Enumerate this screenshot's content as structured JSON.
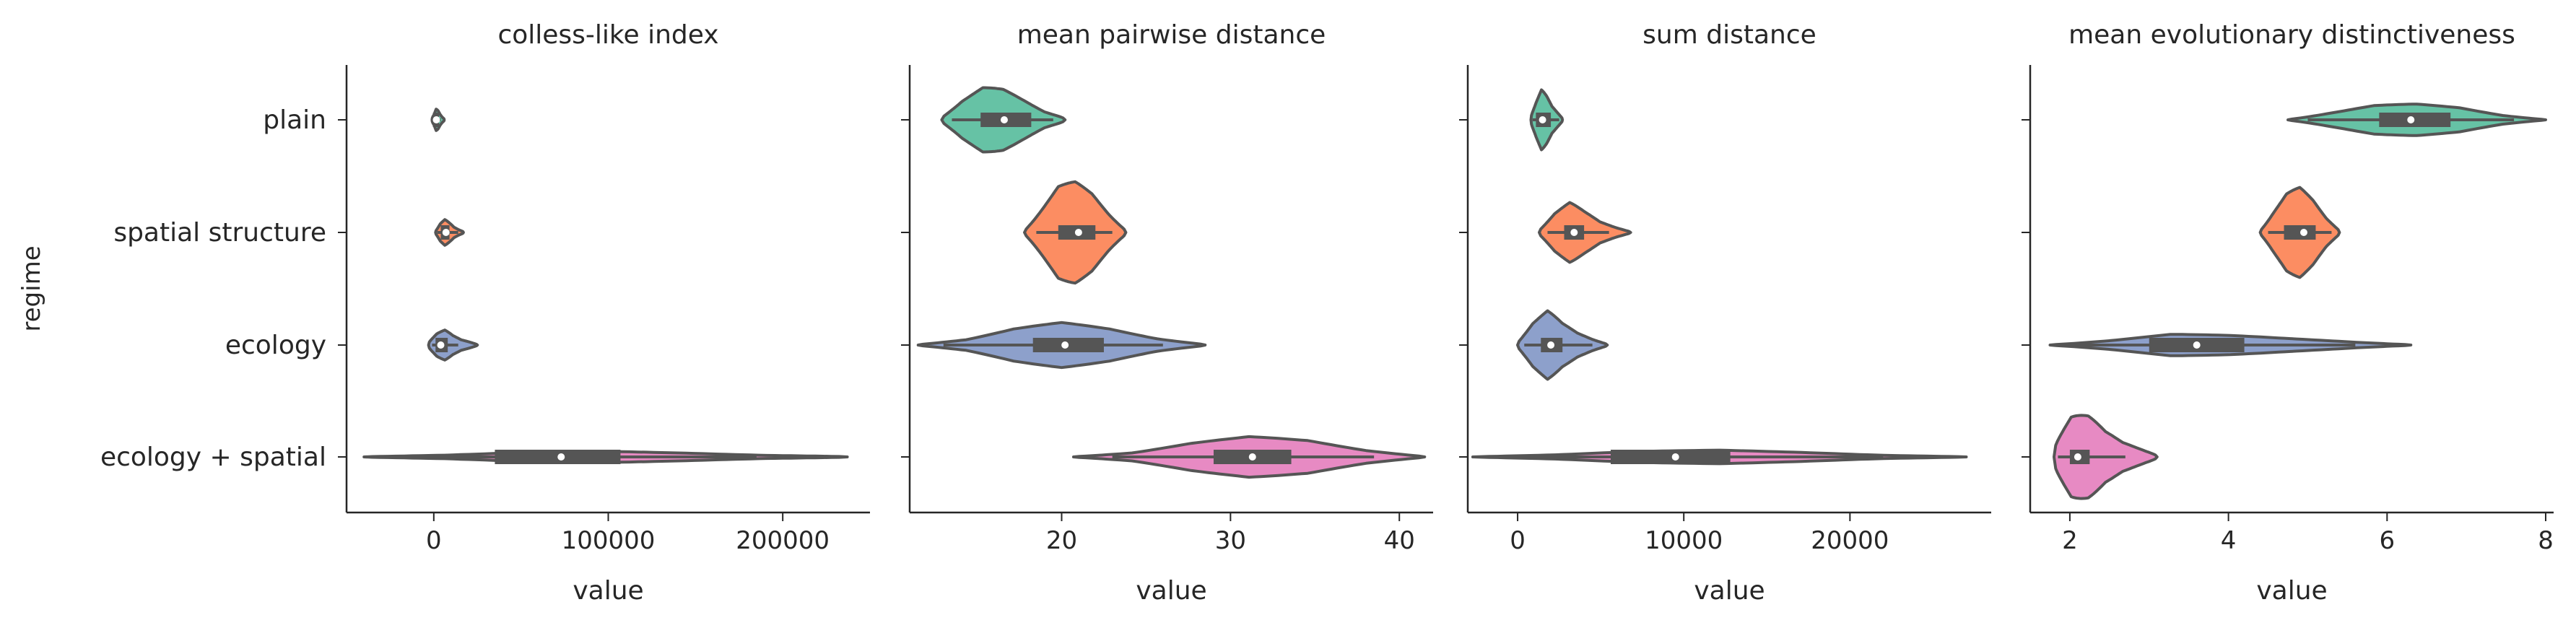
{
  "colors": {
    "plain": "#66c2a5",
    "spatial structure": "#fc8d62",
    "ecology": "#8da0cb",
    "ecology + spatial": "#e78ac3",
    "outline": "#555555",
    "axis": "#262626"
  },
  "chart_data": {
    "type": "violin",
    "ylabel": "regime",
    "categories": [
      "plain",
      "spatial structure",
      "ecology",
      "ecology + spatial"
    ],
    "facets": [
      {
        "title": "colless-like index",
        "xlabel": "value",
        "xlim": [
          -50000,
          250000
        ],
        "xticks": [
          0,
          100000,
          200000
        ],
        "xtick_labels": [
          "0",
          "100000",
          "200000"
        ],
        "violins": [
          {
            "category": "plain",
            "min": -1000,
            "q1": -500,
            "median": 1500,
            "q3": 3000,
            "max": 6000,
            "whisker_low": -500,
            "whisker_high": 4000,
            "halfwidth": 0.1,
            "profile": [
              0.4,
              0.6,
              1.0,
              0.8,
              0.5,
              0.3,
              0.2
            ]
          },
          {
            "category": "spatial structure",
            "min": 1000,
            "q1": 4000,
            "median": 7000,
            "q3": 9000,
            "max": 17000,
            "whisker_low": 2000,
            "whisker_high": 14000,
            "halfwidth": 0.12,
            "profile": [
              0.3,
              0.8,
              1.0,
              0.7,
              0.4,
              0.25,
              0.15
            ]
          },
          {
            "category": "ecology",
            "min": -3000,
            "q1": 1000,
            "median": 4000,
            "q3": 8000,
            "max": 25000,
            "whisker_low": -1000,
            "whisker_high": 14000,
            "halfwidth": 0.14,
            "profile": [
              0.5,
              0.9,
              1.0,
              0.6,
              0.35,
              0.25,
              0.12
            ]
          },
          {
            "category": "ecology + spatial",
            "min": -40000,
            "q1": 35000,
            "median": 73000,
            "q3": 107000,
            "max": 237000,
            "whisker_low": -25000,
            "whisker_high": 185000,
            "halfwidth": 0.05,
            "profile": [
              0.15,
              0.4,
              0.85,
              1.0,
              0.7,
              0.35,
              0.2
            ]
          }
        ]
      },
      {
        "title": "mean pairwise distance",
        "xlabel": "value",
        "xlim": [
          11,
          42
        ],
        "xticks": [
          20,
          30,
          40
        ],
        "xtick_labels": [
          "20",
          "30",
          "40"
        ],
        "violins": [
          {
            "category": "plain",
            "min": 12.9,
            "q1": 15.2,
            "median": 16.6,
            "q3": 18.2,
            "max": 20.2,
            "whisker_low": 13.5,
            "whisker_high": 19.5,
            "halfwidth": 0.3,
            "profile": [
              0.25,
              0.7,
              1.0,
              0.9,
              0.6,
              0.3,
              0.15
            ]
          },
          {
            "category": "spatial structure",
            "min": 17.8,
            "q1": 19.8,
            "median": 21.0,
            "q3": 22.0,
            "max": 23.8,
            "whisker_low": 18.5,
            "whisker_high": 23.0,
            "halfwidth": 0.45,
            "profile": [
              0.15,
              0.55,
              0.95,
              1.0,
              0.8,
              0.45,
              0.15
            ]
          },
          {
            "category": "ecology",
            "min": 11.5,
            "q1": 18.3,
            "median": 20.2,
            "q3": 22.5,
            "max": 28.5,
            "whisker_low": 13.0,
            "whisker_high": 26.0,
            "halfwidth": 0.2,
            "profile": [
              0.08,
              0.3,
              0.75,
              1.0,
              0.75,
              0.35,
              0.1
            ]
          },
          {
            "category": "ecology + spatial",
            "min": 20.7,
            "q1": 29.0,
            "median": 31.3,
            "q3": 33.6,
            "max": 41.5,
            "whisker_low": 23.0,
            "whisker_high": 38.5,
            "halfwidth": 0.18,
            "profile": [
              0.05,
              0.25,
              0.7,
              1.0,
              0.85,
              0.4,
              0.1
            ]
          }
        ]
      },
      {
        "title": "sum distance",
        "xlabel": "value",
        "xlim": [
          -3000,
          28500
        ],
        "xticks": [
          0,
          10000,
          20000
        ],
        "xtick_labels": [
          "0",
          "10000",
          "20000"
        ],
        "violins": [
          {
            "category": "plain",
            "min": 800,
            "q1": 1100,
            "median": 1500,
            "q3": 2000,
            "max": 2700,
            "whisker_low": 900,
            "whisker_high": 2500,
            "halfwidth": 0.28,
            "profile": [
              0.35,
              0.7,
              1.0,
              0.75,
              0.45,
              0.3,
              0.15
            ]
          },
          {
            "category": "spatial structure",
            "min": 1300,
            "q1": 2800,
            "median": 3400,
            "q3": 4000,
            "max": 6800,
            "whisker_low": 1800,
            "whisker_high": 5500,
            "halfwidth": 0.28,
            "profile": [
              0.25,
              0.75,
              1.0,
              0.65,
              0.35,
              0.2,
              0.08
            ]
          },
          {
            "category": "ecology",
            "min": 0,
            "q1": 1400,
            "median": 2000,
            "q3": 2700,
            "max": 5400,
            "whisker_low": 400,
            "whisker_high": 4500,
            "halfwidth": 0.32,
            "profile": [
              0.25,
              0.75,
              1.0,
              0.6,
              0.35,
              0.2,
              0.08
            ]
          },
          {
            "category": "ecology + spatial",
            "min": -2700,
            "q1": 5600,
            "median": 9500,
            "q3": 12800,
            "max": 27000,
            "whisker_low": 0,
            "whisker_high": 22000,
            "halfwidth": 0.06,
            "profile": [
              0.1,
              0.4,
              0.85,
              1.0,
              0.7,
              0.3,
              0.1
            ]
          }
        ]
      },
      {
        "title": "mean evolutionary distinctiveness",
        "xlabel": "value",
        "xlim": [
          1.5,
          8.1
        ],
        "xticks": [
          2,
          4,
          6,
          8
        ],
        "xtick_labels": [
          "2",
          "4",
          "6",
          "8"
        ],
        "violins": [
          {
            "category": "plain",
            "min": 4.75,
            "q1": 5.9,
            "median": 6.3,
            "q3": 6.8,
            "max": 8.0,
            "whisker_low": 5.0,
            "whisker_high": 7.6,
            "halfwidth": 0.14,
            "profile": [
              0.1,
              0.55,
              0.95,
              1.0,
              0.8,
              0.35,
              0.08
            ]
          },
          {
            "category": "spatial structure",
            "min": 4.4,
            "q1": 4.7,
            "median": 4.95,
            "q3": 5.1,
            "max": 5.4,
            "whisker_low": 4.5,
            "whisker_high": 5.3,
            "halfwidth": 0.4,
            "profile": [
              0.15,
              0.55,
              0.9,
              1.0,
              0.75,
              0.4,
              0.15
            ]
          },
          {
            "category": "ecology",
            "min": 1.75,
            "q1": 3.0,
            "median": 3.6,
            "q3": 4.2,
            "max": 6.3,
            "whisker_low": 2.0,
            "whisker_high": 5.6,
            "halfwidth": 0.1,
            "profile": [
              0.1,
              0.5,
              1.0,
              0.85,
              0.6,
              0.35,
              0.1
            ]
          },
          {
            "category": "ecology + spatial",
            "min": 1.8,
            "q1": 2.0,
            "median": 2.1,
            "q3": 2.25,
            "max": 3.1,
            "whisker_low": 1.85,
            "whisker_high": 2.7,
            "halfwidth": 0.45,
            "profile": [
              0.6,
              1.0,
              0.85,
              0.5,
              0.3,
              0.2,
              0.1
            ]
          }
        ]
      }
    ]
  }
}
